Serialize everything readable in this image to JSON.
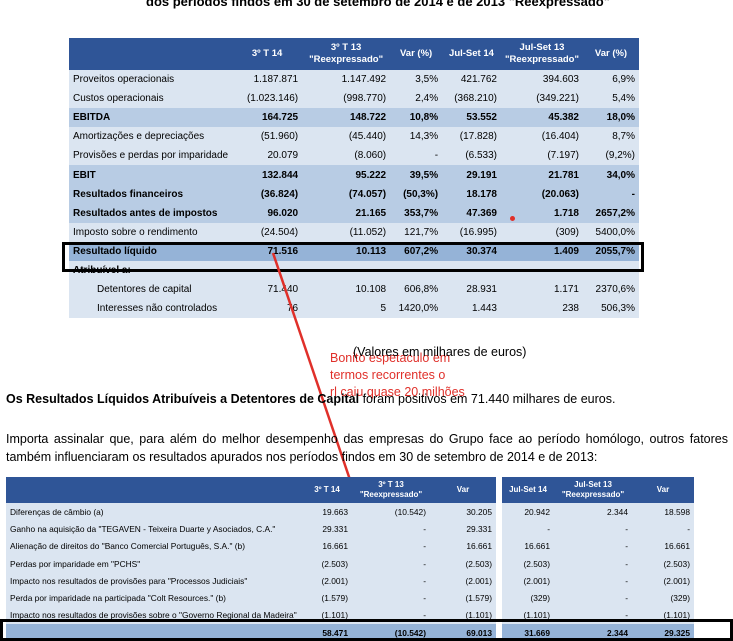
{
  "header": {
    "text": "dos períodos findos em 30 de setembro de 2014 e de 2013 \"Reexpressado\""
  },
  "table1": {
    "col_headers": [
      "3º T 14",
      "3º T 13 \"Reexpressado\"",
      "Var (%)"
    ],
    "rows": [
      {
        "label": "Proveitos operacionais",
        "v": [
          "1.187.871",
          "1.147.492",
          "3,5%"
        ]
      },
      {
        "label": "Custos operacionais",
        "v": [
          "(1.023.146)",
          "(998.770)",
          "2,4%"
        ]
      },
      {
        "label": "EBITDA",
        "v": [
          "164.725",
          "148.722",
          "10,8%"
        ]
      },
      {
        "label": "Amortizações e depreciações",
        "v": [
          "(51.960)",
          "(45.440)",
          "14,3%"
        ]
      },
      {
        "label": "Provisões e perdas por imparidade",
        "v": [
          "20.079",
          "(8.060)",
          "-"
        ]
      },
      {
        "label": "EBIT",
        "v": [
          "132.844",
          "95.222",
          "39,5%"
        ]
      },
      {
        "label": "Resultados financeiros",
        "v": [
          "(36.824)",
          "(74.057)",
          "(50,3%)"
        ]
      },
      {
        "label": "Resultados antes de impostos",
        "v": [
          "96.020",
          "21.165",
          "353,7%"
        ]
      },
      {
        "label": "Imposto sobre o rendimento",
        "v": [
          "(24.504)",
          "(11.052)",
          "121,7%"
        ]
      },
      {
        "label": "Resultado líquido",
        "v": [
          "71.516",
          "10.113",
          "607,2%"
        ]
      },
      {
        "label": "Atribuível a:",
        "v": [
          "",
          "",
          ""
        ]
      },
      {
        "label": "Detentores de capital",
        "v": [
          "71.440",
          "10.108",
          "606,8%"
        ]
      },
      {
        "label": "Interesses não controlados",
        "v": [
          "76",
          "5",
          "1420,0%"
        ]
      }
    ]
  },
  "table2": {
    "col_headers": [
      "Jul-Set 14",
      "Jul-Set 13 \"Reexpressado\"",
      "Var (%)"
    ],
    "rows": [
      [
        "421.762",
        "394.603",
        "6,9%"
      ],
      [
        "(368.210)",
        "(349.221)",
        "5,4%"
      ],
      [
        "53.552",
        "45.382",
        "18,0%"
      ],
      [
        "(17.828)",
        "(16.404)",
        "8,7%"
      ],
      [
        "(6.533)",
        "(7.197)",
        "(9,2%)"
      ],
      [
        "29.191",
        "21.781",
        "34,0%"
      ],
      [
        "18.178",
        "(20.063)",
        "-"
      ],
      [
        "47.369",
        "1.718",
        "2657,2%"
      ],
      [
        "(16.995)",
        "(309)",
        "5400,0%"
      ],
      [
        "30.374",
        "1.409",
        "2055,7%"
      ],
      [
        "",
        "",
        ""
      ],
      [
        "28.931",
        "1.171",
        "2370,6%"
      ],
      [
        "1.443",
        "238",
        "506,3%"
      ]
    ]
  },
  "annotation": {
    "text": "Bonito espetaculo em\ntermos recorrentes o\nrl caiu quase 20 milhões"
  },
  "units_note": "(Valores em milhares de euros)",
  "section_title": {
    "bold": "Os Resultados Líquidos Atribuíveis a Detentores de Capital",
    "rest": " foram positivos em 71.440 milhares de euros."
  },
  "paragraph": "Importa assinalar que, para além do melhor desempenho das empresas do Grupo face ao período homólogo, outros fatores também influenciaram os resultados apurados nos períodos findos em 30 de setembro de 2014 e de 2013:",
  "table3": {
    "col_headers": [
      "",
      "3º T 14",
      "3º T 13 \"Reexpressado\"",
      "Var"
    ],
    "rows": [
      [
        "Diferenças de câmbio (a)",
        "19.663",
        "(10.542)",
        "30.205"
      ],
      [
        "Ganho na aquisição da \"TEGAVEN - Teixeira Duarte y Asociados, C.A.\"",
        "29.331",
        "-",
        "29.331"
      ],
      [
        "Alienação de direitos do \"Banco Comercial Português, S.A.\" (b)",
        "16.661",
        "-",
        "16.661"
      ],
      [
        "Perdas por imparidade em \"PCHS\"",
        "(2.503)",
        "-",
        "(2.503)"
      ],
      [
        "Impacto nos resultados de provisões para \"Processos Judiciais\"",
        "(2.001)",
        "-",
        "(2.001)"
      ],
      [
        "Perda por imparidade na participada \"Colt Resources.\" (b)",
        "(1.579)",
        "-",
        "(1.579)"
      ],
      [
        "Impacto nos resultados de provisões sobre o \"Governo Regional da Madeira\"",
        "(1.101)",
        "-",
        "(1.101)"
      ],
      [
        "",
        "58.471",
        "(10.542)",
        "69.013"
      ]
    ]
  },
  "table4": {
    "col_headers": [
      "Jul-Set 14",
      "Jul-Set 13 \"Reexpressado\"",
      "Var"
    ],
    "rows": [
      [
        "20.942",
        "2.344",
        "18.598"
      ],
      [
        "-",
        "-",
        "-"
      ],
      [
        "16.661",
        "-",
        "16.661"
      ],
      [
        "(2.503)",
        "-",
        "(2.503)"
      ],
      [
        "(2.001)",
        "-",
        "(2.001)"
      ],
      [
        "(329)",
        "-",
        "(329)"
      ],
      [
        "(1.101)",
        "-",
        "(1.101)"
      ],
      [
        "31.669",
        "2.344",
        "29.325"
      ]
    ]
  }
}
